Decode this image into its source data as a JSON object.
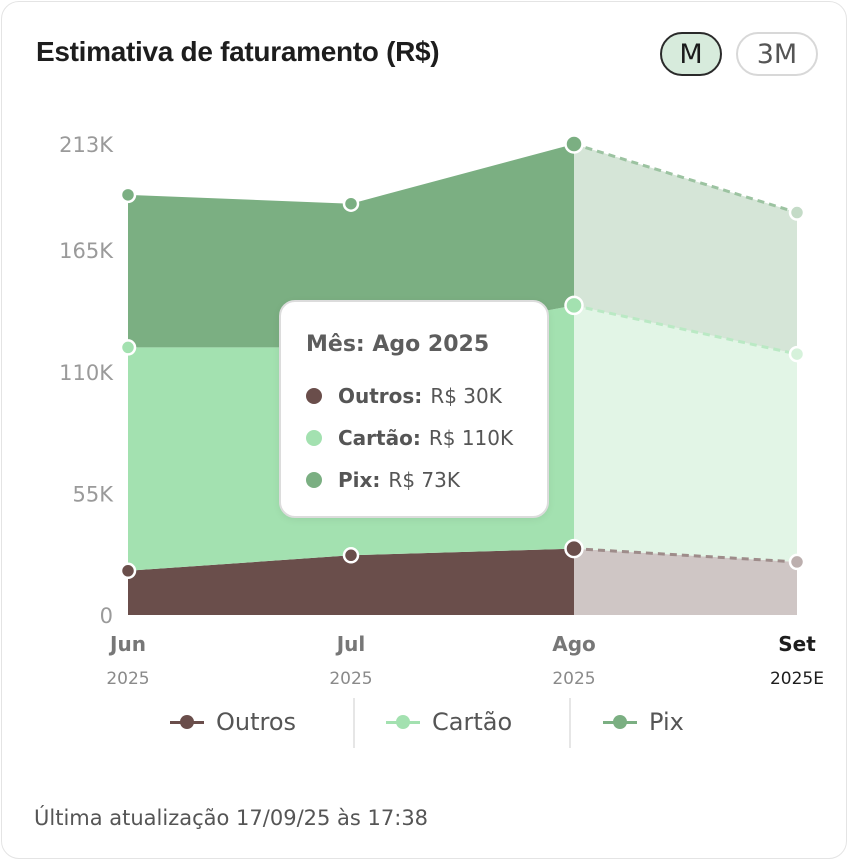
{
  "header": {
    "title": "Estimativa de faturamento (R$)",
    "periods": [
      {
        "label": "M",
        "active": true
      },
      {
        "label": "3M",
        "active": false
      }
    ]
  },
  "chart_data": {
    "type": "area",
    "stacked": true,
    "title": "Estimativa de faturamento (R$)",
    "xlabel": "",
    "ylabel": "",
    "x": [
      {
        "month": "Jun",
        "year": "2025",
        "estimate": false
      },
      {
        "month": "Jul",
        "year": "2025",
        "estimate": false
      },
      {
        "month": "Ago",
        "year": "2025",
        "estimate": false
      },
      {
        "month": "Set",
        "year": "2025E",
        "estimate": true
      }
    ],
    "y_ticks": [
      {
        "value": 0,
        "label": "0"
      },
      {
        "value": 55000,
        "label": "55K"
      },
      {
        "value": 110000,
        "label": "110K"
      },
      {
        "value": 165000,
        "label": "165K"
      },
      {
        "value": 213000,
        "label": "213K"
      }
    ],
    "ylim": [
      0,
      213000
    ],
    "grid": false,
    "series": [
      {
        "name": "Outros",
        "color": "#6a4e4b",
        "values": [
          20000,
          27000,
          30000,
          24000
        ]
      },
      {
        "name": "Cartão",
        "color": "#a3e1b0",
        "values": [
          101000,
          94000,
          110000,
          94000
        ]
      },
      {
        "name": "Pix",
        "color": "#7baf82",
        "values": [
          69000,
          65000,
          73000,
          64000
        ]
      }
    ],
    "highlight_index": 2,
    "legend_position": "bottom"
  },
  "tooltip": {
    "title": "Mês: Ago 2025",
    "rows": [
      {
        "name": "Outros:",
        "value": "R$ 30K",
        "color": "#6a4e4b"
      },
      {
        "name": "Cartão:",
        "value": "R$ 110K",
        "color": "#a3e1b0"
      },
      {
        "name": "Pix:",
        "value": "R$ 73K",
        "color": "#7baf82"
      }
    ]
  },
  "legend": [
    {
      "label": "Outros",
      "color": "#6a4e4b"
    },
    {
      "label": "Cartão",
      "color": "#a3e1b0"
    },
    {
      "label": "Pix",
      "color": "#7baf82"
    }
  ],
  "footer": {
    "updated": "Última atualização 17/09/25 às 17:38"
  }
}
